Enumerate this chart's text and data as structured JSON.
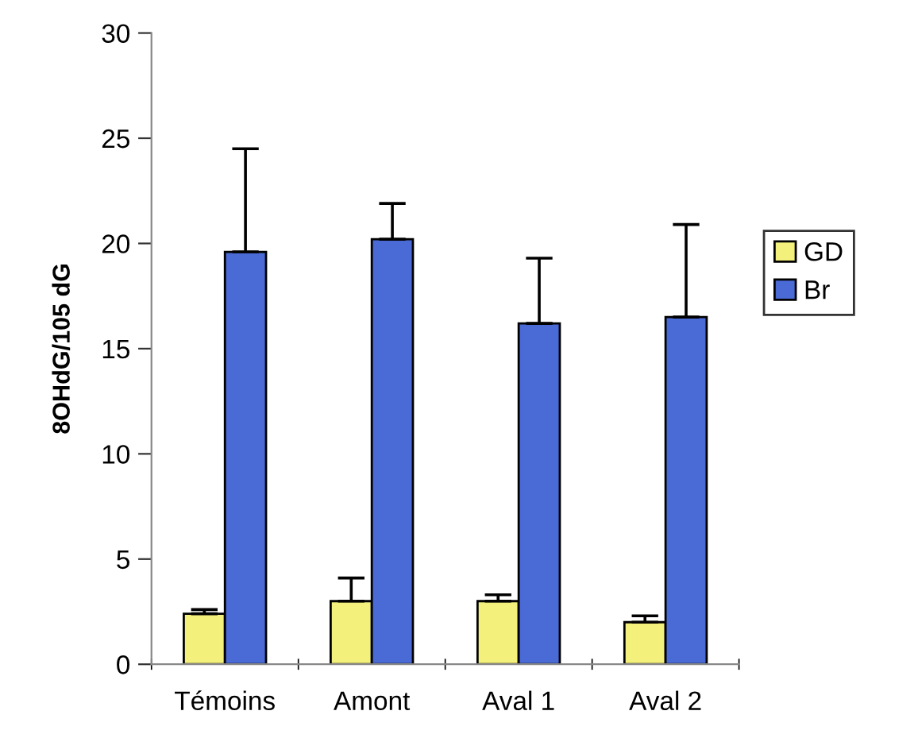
{
  "chart_data": {
    "type": "bar",
    "ylabel": "8OHdG/105 dG",
    "categories": [
      "Témoins",
      "Amont",
      "Aval 1",
      "Aval 2"
    ],
    "series": [
      {
        "name": "GD",
        "color": "#f4f07c",
        "values": [
          2.4,
          3.0,
          3.0,
          2.0
        ],
        "errors": [
          [
            2.4,
            2.6
          ],
          [
            3.0,
            4.1
          ],
          [
            3.0,
            3.3
          ],
          [
            2.0,
            2.3
          ]
        ]
      },
      {
        "name": "Br",
        "color": "#4a6ad6",
        "values": [
          19.6,
          20.2,
          16.2,
          16.5
        ],
        "errors": [
          [
            19.6,
            24.5
          ],
          [
            20.2,
            21.9
          ],
          [
            16.2,
            19.3
          ],
          [
            16.5,
            20.9
          ]
        ]
      }
    ],
    "ylim": [
      0,
      30
    ],
    "yticks": [
      0,
      5,
      10,
      15,
      20,
      25,
      30
    ],
    "grid": false,
    "legend": "right"
  }
}
